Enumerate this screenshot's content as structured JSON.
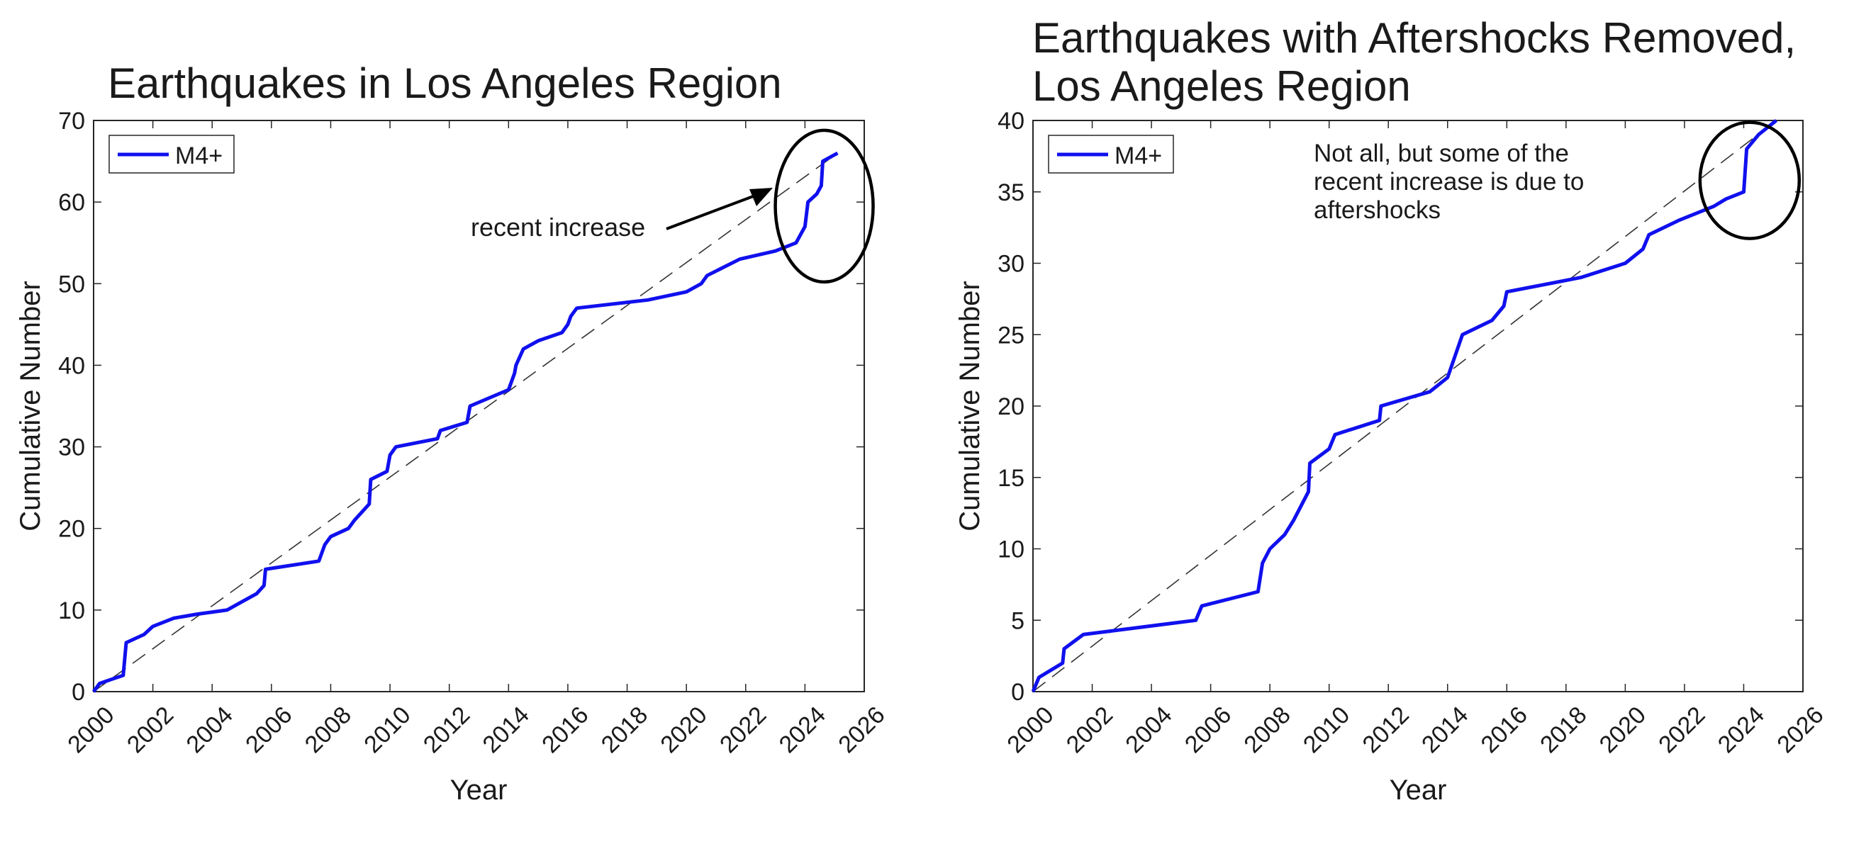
{
  "chart_data": [
    {
      "type": "line",
      "title": "Earthquakes in Los Angeles Region",
      "xlabel": "Year",
      "ylabel": "Cumulative Number",
      "xlim": [
        2000,
        2026
      ],
      "ylim": [
        0,
        70
      ],
      "x_ticks": [
        2000,
        2002,
        2004,
        2006,
        2008,
        2010,
        2012,
        2014,
        2016,
        2018,
        2020,
        2022,
        2024,
        2026
      ],
      "y_ticks": [
        0,
        10,
        20,
        30,
        40,
        50,
        60,
        70
      ],
      "legend": {
        "position": "top-left",
        "entries": [
          "M4+"
        ]
      },
      "series": [
        {
          "name": "M4+",
          "color": "#1010ee",
          "points": [
            [
              2000.0,
              0
            ],
            [
              2000.2,
              1
            ],
            [
              2000.6,
              1.5
            ],
            [
              2001.0,
              2
            ],
            [
              2001.05,
              4
            ],
            [
              2001.1,
              6
            ],
            [
              2001.7,
              7
            ],
            [
              2002.0,
              8
            ],
            [
              2002.7,
              9
            ],
            [
              2003.5,
              9.5
            ],
            [
              2004.5,
              10
            ],
            [
              2005.0,
              11
            ],
            [
              2005.5,
              12
            ],
            [
              2005.75,
              13
            ],
            [
              2005.8,
              15
            ],
            [
              2007.6,
              16
            ],
            [
              2007.8,
              18
            ],
            [
              2008.0,
              19
            ],
            [
              2008.6,
              20
            ],
            [
              2008.8,
              21
            ],
            [
              2009.3,
              23
            ],
            [
              2009.35,
              26
            ],
            [
              2009.9,
              27
            ],
            [
              2010.0,
              29
            ],
            [
              2010.2,
              30
            ],
            [
              2011.6,
              31
            ],
            [
              2011.7,
              32
            ],
            [
              2012.6,
              33
            ],
            [
              2012.7,
              35
            ],
            [
              2014.0,
              37
            ],
            [
              2014.2,
              39
            ],
            [
              2014.25,
              40
            ],
            [
              2014.5,
              42
            ],
            [
              2015.0,
              43
            ],
            [
              2015.8,
              44
            ],
            [
              2016.0,
              45
            ],
            [
              2016.1,
              46
            ],
            [
              2016.3,
              47
            ],
            [
              2018.7,
              48
            ],
            [
              2020.0,
              49
            ],
            [
              2020.5,
              50
            ],
            [
              2020.7,
              51
            ],
            [
              2021.8,
              53
            ],
            [
              2023.0,
              54
            ],
            [
              2023.7,
              55
            ],
            [
              2024.0,
              57
            ],
            [
              2024.1,
              60
            ],
            [
              2024.4,
              61
            ],
            [
              2024.55,
              62
            ],
            [
              2024.6,
              65
            ],
            [
              2025.1,
              66
            ]
          ]
        }
      ],
      "trend_line": {
        "style": "dashed",
        "points": [
          [
            2000.0,
            0
          ],
          [
            2025.1,
            66
          ]
        ]
      },
      "annotation": {
        "text": "recent increase",
        "arrow_to": [
          2023.2,
          61.5
        ],
        "circle_center": [
          2024.65,
          59.5
        ]
      }
    },
    {
      "type": "line",
      "title_lines": [
        "Earthquakes with Aftershocks Removed,",
        "Los Angeles Region"
      ],
      "xlabel": "Year",
      "ylabel": "Cumulative Number",
      "xlim": [
        2000,
        2026
      ],
      "ylim": [
        0,
        40
      ],
      "x_ticks": [
        2000,
        2002,
        2004,
        2006,
        2008,
        2010,
        2012,
        2014,
        2016,
        2018,
        2020,
        2022,
        2024,
        2026
      ],
      "y_ticks": [
        0,
        5,
        10,
        15,
        20,
        25,
        30,
        35,
        40
      ],
      "legend": {
        "position": "top-left",
        "entries": [
          "M4+"
        ]
      },
      "series": [
        {
          "name": "M4+",
          "color": "#1010ee",
          "points": [
            [
              2000.0,
              0
            ],
            [
              2000.2,
              1
            ],
            [
              2001.0,
              2
            ],
            [
              2001.05,
              3
            ],
            [
              2001.7,
              4
            ],
            [
              2005.5,
              5
            ],
            [
              2005.7,
              6
            ],
            [
              2007.6,
              7
            ],
            [
              2007.75,
              9
            ],
            [
              2008.0,
              10
            ],
            [
              2008.5,
              11
            ],
            [
              2008.8,
              12
            ],
            [
              2009.3,
              14
            ],
            [
              2009.35,
              16
            ],
            [
              2010.0,
              17
            ],
            [
              2010.2,
              18
            ],
            [
              2011.7,
              19
            ],
            [
              2011.75,
              20
            ],
            [
              2013.4,
              21
            ],
            [
              2014.0,
              22
            ],
            [
              2014.5,
              25
            ],
            [
              2015.5,
              26
            ],
            [
              2015.9,
              27
            ],
            [
              2016.0,
              28
            ],
            [
              2018.5,
              29
            ],
            [
              2020.0,
              30
            ],
            [
              2020.6,
              31
            ],
            [
              2020.8,
              32
            ],
            [
              2021.8,
              33
            ],
            [
              2023.0,
              34
            ],
            [
              2023.4,
              34.5
            ],
            [
              2024.0,
              35
            ],
            [
              2024.1,
              38
            ],
            [
              2024.5,
              39
            ],
            [
              2025.1,
              40
            ]
          ]
        }
      ],
      "trend_line": {
        "style": "dashed",
        "points": [
          [
            2000.0,
            0
          ],
          [
            2025.1,
            40
          ]
        ]
      },
      "annotation": {
        "text_lines": [
          "Not all, but some of the",
          "recent increase is due to",
          "aftershocks"
        ],
        "circle_center": [
          2024.2,
          35.8
        ]
      }
    }
  ]
}
